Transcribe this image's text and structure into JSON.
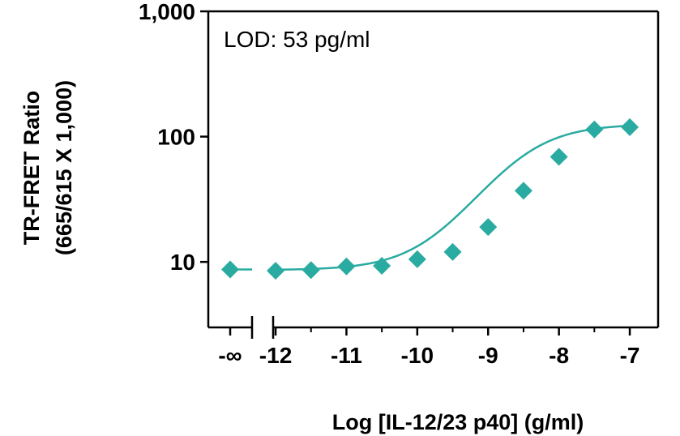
{
  "chart_data": {
    "type": "scatter",
    "title": "",
    "xlabel": "Log [IL-12/23 p40] (g/ml)",
    "ylabel_lines": [
      "TR-FRET Ratio",
      "(665/615 X 1,000)"
    ],
    "annotation": "LOD: 53 pg/ml",
    "y_scale": "log",
    "ylim": [
      3,
      1000
    ],
    "xlim": [
      -12.95,
      -6.6
    ],
    "grid": false,
    "legend": "none",
    "x_ticks": [
      {
        "value": "-inf",
        "label": "-∞"
      },
      {
        "value": -12,
        "label": "-12"
      },
      {
        "value": -11,
        "label": "-11"
      },
      {
        "value": -10,
        "label": "-10"
      },
      {
        "value": -9,
        "label": "-9"
      },
      {
        "value": -8,
        "label": "-8"
      },
      {
        "value": -7,
        "label": "-7"
      }
    ],
    "y_ticks": [
      {
        "value": 10,
        "label": "10"
      },
      {
        "value": 100,
        "label": "100"
      },
      {
        "value": 1000,
        "label": "1,000"
      }
    ],
    "series": [
      {
        "points": [
          {
            "x": "-inf",
            "y": 8.7
          },
          {
            "x": -12,
            "y": 8.5
          },
          {
            "x": -11.5,
            "y": 8.6
          },
          {
            "x": -11,
            "y": 9.2
          },
          {
            "x": -10.5,
            "y": 9.3
          },
          {
            "x": -10,
            "y": 10.5
          },
          {
            "x": -9.5,
            "y": 12
          },
          {
            "x": -9,
            "y": 19
          },
          {
            "x": -8.5,
            "y": 37
          },
          {
            "x": -8,
            "y": 69
          },
          {
            "x": -7.5,
            "y": 114
          },
          {
            "x": -7,
            "y": 119
          }
        ],
        "color": "#2aaba1"
      }
    ]
  }
}
